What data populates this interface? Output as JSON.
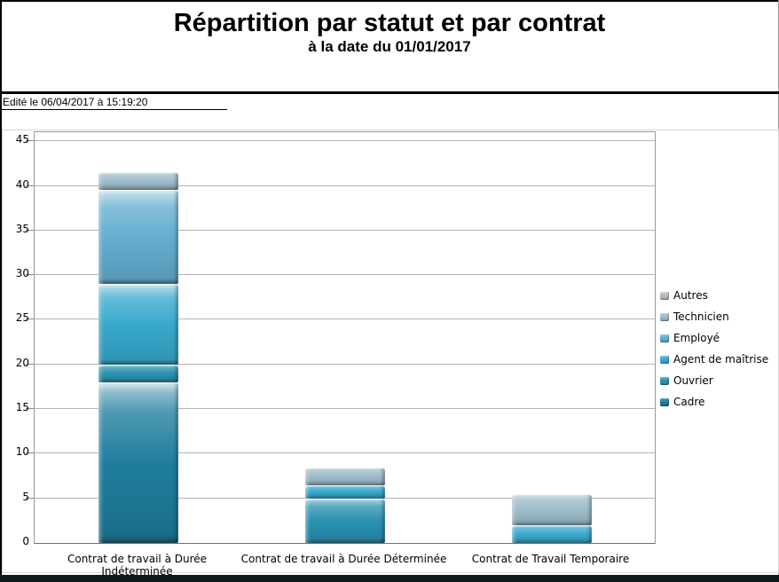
{
  "header": {
    "title": "Répartition par statut et par contrat",
    "subtitle": "à la date du 01/01/2017"
  },
  "meta": {
    "edited_label": "Edité le 06/04/2017 à 15:19:20"
  },
  "chart_data": {
    "type": "bar",
    "stacked": true,
    "title": "Répartition par statut et par contrat",
    "subtitle": "à la date du 01/01/2017",
    "categories": [
      "Contrat de travail à Durée Indéterminée",
      "Contrat de travail à Durée Déterminée",
      "Contrat de Travail Temporaire"
    ],
    "series": [
      {
        "name": "Cadre",
        "color": "#1f7e9d",
        "values": [
          18,
          0,
          0
        ]
      },
      {
        "name": "Ouvrier",
        "color": "#2a92b2",
        "values": [
          2,
          5,
          0
        ]
      },
      {
        "name": "Agent de maîtrise",
        "color": "#38a9cd",
        "values": [
          9,
          1.5,
          2
        ]
      },
      {
        "name": "Employé",
        "color": "#64aed0",
        "values": [
          10.5,
          0,
          0
        ]
      },
      {
        "name": "Technicien",
        "color": "#9dbcca",
        "values": [
          2,
          2,
          3.5
        ]
      },
      {
        "name": "Autres",
        "color": "#b6bcbf",
        "values": [
          0,
          0,
          0
        ]
      }
    ],
    "totals": [
      41.5,
      8.5,
      5.5
    ],
    "ylim": [
      0,
      45
    ],
    "yticks": [
      0,
      5,
      10,
      15,
      20,
      25,
      30,
      35,
      40,
      45
    ],
    "grid": "horizontal",
    "legend_position": "right",
    "legend_order_top_to_bottom": [
      "Autres",
      "Technicien",
      "Employé",
      "Agent de maîtrise",
      "Ouvrier",
      "Cadre"
    ]
  },
  "colors": {
    "page_background": "#ffffff",
    "rule": "#000000",
    "gridline": "#b4b4b4",
    "plot_border": "#9a9a9a",
    "bottom_band": "#10181c"
  }
}
